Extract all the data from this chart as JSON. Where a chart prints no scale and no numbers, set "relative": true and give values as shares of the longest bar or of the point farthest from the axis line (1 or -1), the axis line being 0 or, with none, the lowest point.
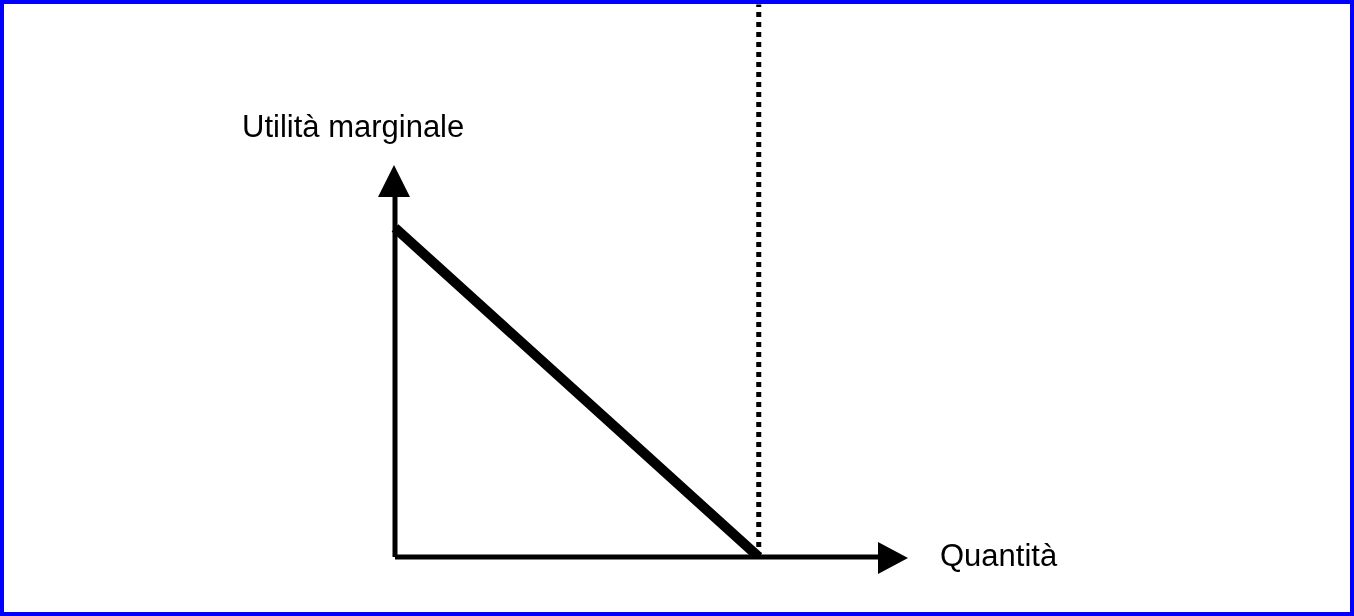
{
  "chart_data": {
    "type": "line",
    "relative": true,
    "xlabel": "Quantità",
    "ylabel": "Utilità marginale",
    "categories": [
      null,
      null,
      null,
      null,
      null
    ],
    "series": [
      {
        "color": "#000000",
        "values": [
          1,
          0.6667,
          0.3333,
          0,
          null
        ]
      }
    ],
    "marker": "none",
    "line_style": "solid"
  }
}
